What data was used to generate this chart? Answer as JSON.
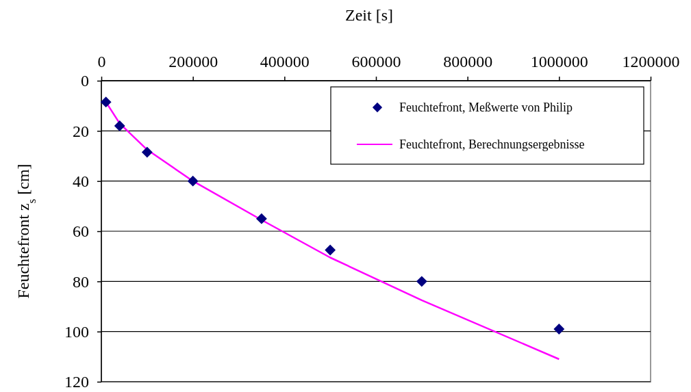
{
  "chart_data": {
    "type": "scatter",
    "xlabel": "Zeit [s]",
    "ylabel": "Feuchtefront z$_{s}$ [cm]",
    "xlim": [
      0,
      1200000
    ],
    "xticks": [
      0,
      200000,
      400000,
      600000,
      800000,
      1000000,
      1200000
    ],
    "ylim": [
      120,
      0
    ],
    "yticks": [
      0,
      20,
      40,
      60,
      80,
      100,
      120
    ],
    "grid": "y",
    "legend": "top right",
    "marker": "diamond",
    "series": [
      {
        "name": "Feuchtefront, Meßwerte von Philip",
        "color": "#000080",
        "x": [
          10000,
          40000,
          100000,
          200000,
          350000,
          500000,
          700000,
          1000000
        ],
        "values": [
          8.5,
          18,
          28.5,
          40,
          55,
          67.5,
          80,
          99
        ]
      },
      {
        "name": "Feuchtefront, Berechnungsergebnisse",
        "type": "line",
        "marker": "none",
        "color": "#ff00ff",
        "x": [
          10000,
          40000,
          100000,
          200000,
          350000,
          500000,
          700000,
          1000000
        ],
        "values": [
          8.5,
          17,
          27.5,
          40,
          55.5,
          70.5,
          87.5,
          111
        ]
      }
    ]
  }
}
